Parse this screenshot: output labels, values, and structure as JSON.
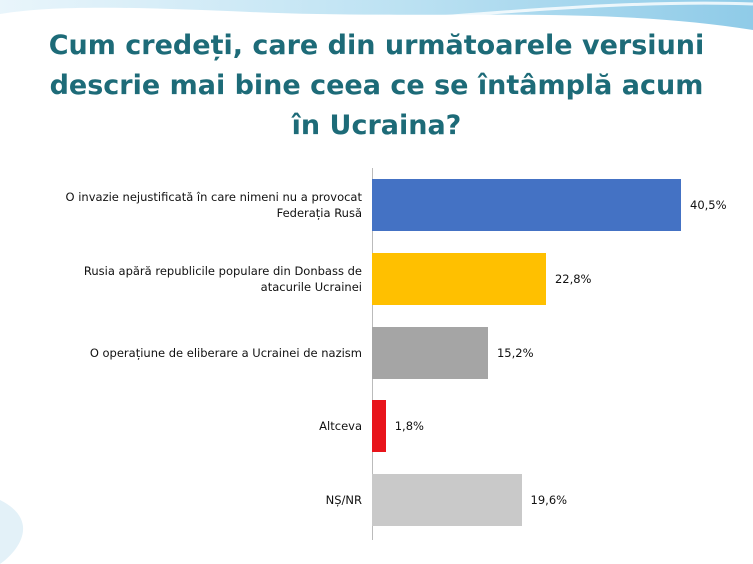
{
  "chart_data": {
    "type": "bar",
    "orientation": "horizontal",
    "title": "Cum credeți, care din următoarele versiuni descrie mai bine ceea ce se întâmplă acum în Ucraina?",
    "categories": [
      "O invazie nejustificată în care nimeni nu a provocat Federația Rusă",
      "Rusia apără republicile populare din Donbass de atacurile Ucrainei",
      "O operațiune de eliberare a Ucrainei de nazism",
      "Altceva",
      "NȘ/NR"
    ],
    "values": [
      40.5,
      22.8,
      15.2,
      1.8,
      19.6
    ],
    "value_labels": [
      "40,5%",
      "22,8%",
      "15,2%",
      "1,8%",
      "19,6%"
    ],
    "colors": [
      "#4472c4",
      "#ffc000",
      "#a5a5a5",
      "#e8141b",
      "#c9c9c9"
    ]
  }
}
